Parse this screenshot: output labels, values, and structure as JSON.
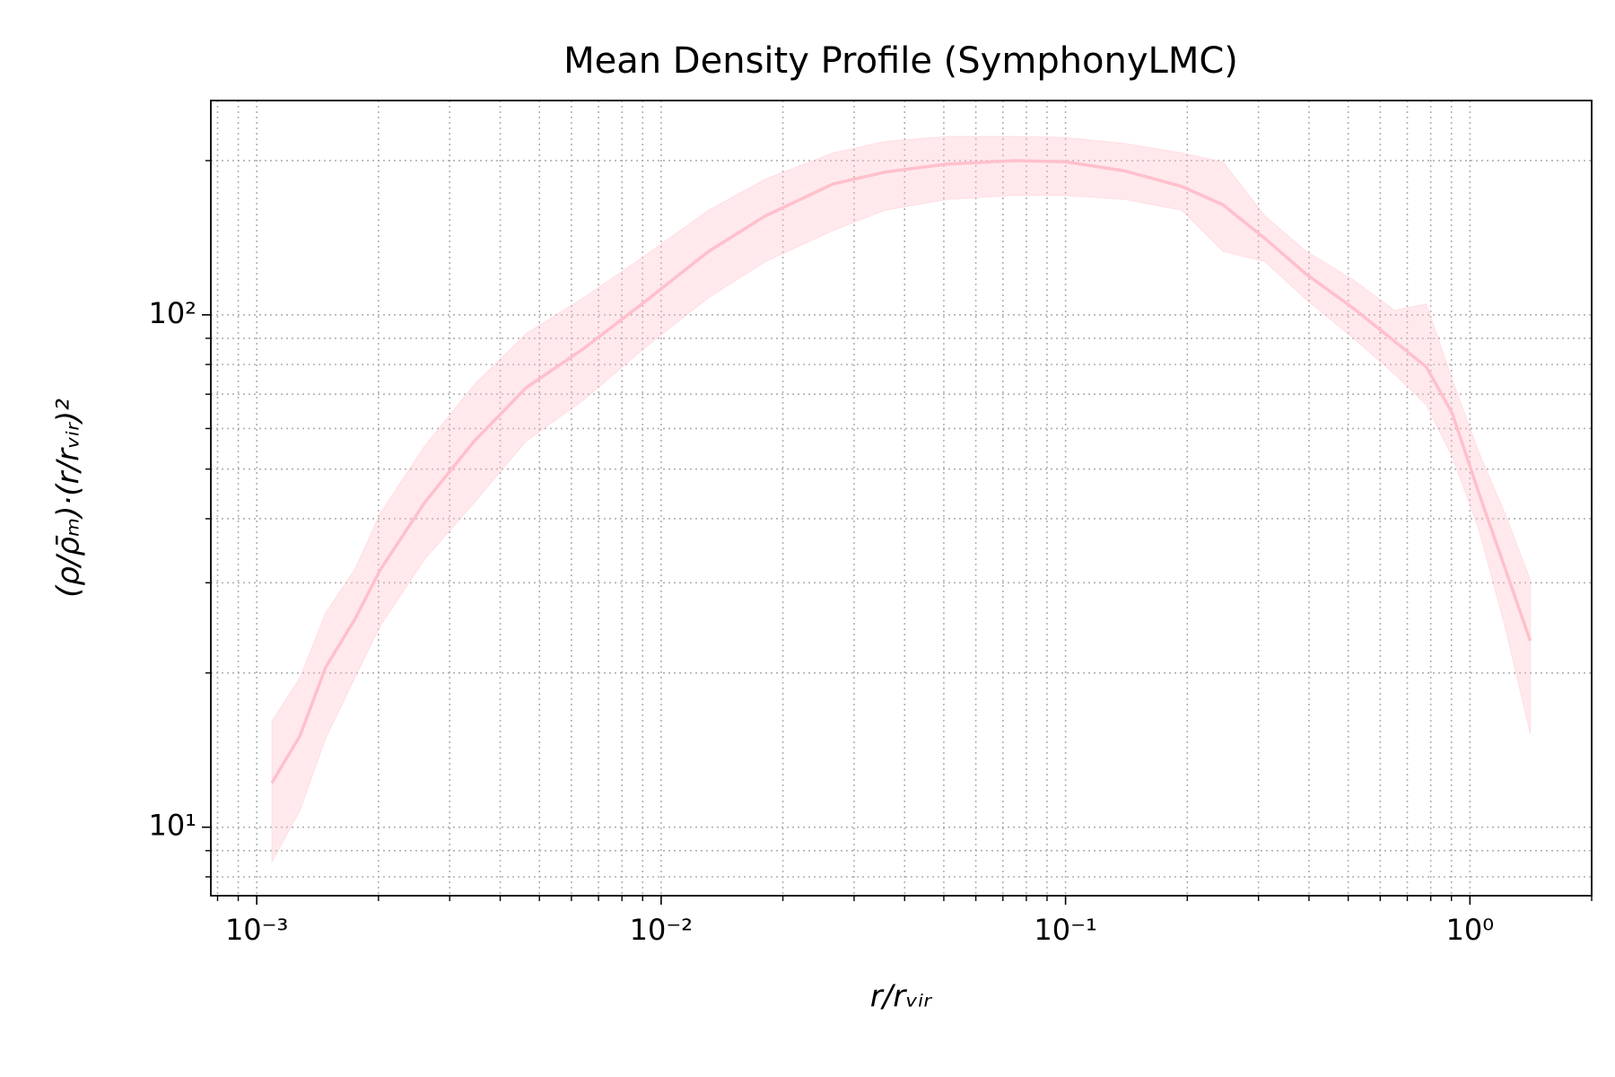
{
  "chart_data": {
    "type": "line",
    "title": "Mean Density Profile (SymphonyLMC)",
    "xlabel": "r/rᵥᵢᵣ",
    "ylabel": "(ρ/ρ̄ₘ)·(r/rᵥᵢᵣ)²",
    "x": [
      0.00109,
      0.00128,
      0.00148,
      0.00175,
      0.00202,
      0.0026,
      0.00345,
      0.00464,
      0.00643,
      0.00906,
      0.0131,
      0.0181,
      0.0266,
      0.0358,
      0.0511,
      0.075,
      0.0998,
      0.14,
      0.194,
      0.245,
      0.311,
      0.394,
      0.515,
      0.652,
      0.78,
      0.904,
      1.05,
      1.22,
      1.41
    ],
    "series": [
      {
        "color": "#ffc0cb",
        "values": [
          12.2,
          15.1,
          20.5,
          25.5,
          31.8,
          43.0,
          56.7,
          72.1,
          85.9,
          105.7,
          133,
          156,
          180,
          190,
          197,
          200,
          199,
          191,
          178,
          164,
          141,
          120,
          103,
          88.7,
          79.1,
          64.3,
          45.1,
          32.1,
          23.1
        ],
        "upper": [
          16.1,
          19.6,
          26.2,
          31.9,
          41.0,
          55.4,
          73.1,
          92.0,
          108,
          130,
          160,
          184,
          207,
          218,
          223,
          223,
          222,
          216,
          207,
          199,
          156,
          133,
          117,
          102,
          105,
          74.8,
          54.1,
          41.0,
          30.4
        ],
        "lower": [
          8.55,
          10.8,
          14.9,
          19.6,
          24.7,
          33.3,
          43.0,
          56.7,
          68.2,
          85.9,
          108,
          127,
          146,
          160,
          168,
          171,
          171,
          168,
          160,
          133,
          127,
          107,
          90,
          76.5,
          66.7,
          52.8,
          38.3,
          24.7,
          15.2
        ]
      }
    ],
    "xscale": "log",
    "yscale": "log",
    "xlim": [
      0.00077,
      2
    ],
    "ylim": [
      7.35,
      262
    ],
    "xticks": [
      {
        "value": 0.001,
        "label": "10⁻³"
      },
      {
        "value": 0.01,
        "label": "10⁻²"
      },
      {
        "value": 0.1,
        "label": "10⁻¹"
      },
      {
        "value": 1,
        "label": "10⁰"
      }
    ],
    "yticks": [
      {
        "value": 10,
        "label": "10¹"
      },
      {
        "value": 100,
        "label": "10²"
      }
    ],
    "x_minor_ticks": [
      0.0008,
      0.0009,
      0.002,
      0.003,
      0.004,
      0.005,
      0.006,
      0.007,
      0.008,
      0.009,
      0.02,
      0.03,
      0.04,
      0.05,
      0.06,
      0.07,
      0.08,
      0.09,
      0.2,
      0.3,
      0.4,
      0.5,
      0.6,
      0.7,
      0.8,
      0.9,
      2
    ],
    "y_minor_ticks": [
      8,
      9,
      20,
      30,
      40,
      50,
      60,
      70,
      80,
      90,
      200
    ],
    "grid": true
  }
}
